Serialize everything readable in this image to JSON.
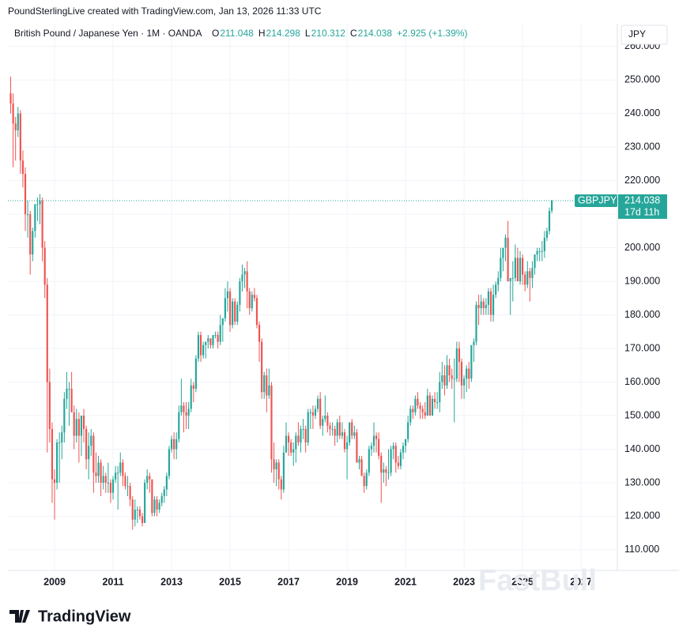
{
  "credit": "PoundSterlingLive created with TradingView.com, Jan 13, 2026 11:33 UTC",
  "chart_data": {
    "type": "candlestick",
    "title": "British Pound / Japanese Yen · 1M · OANDA",
    "ohlc_letters": [
      "O",
      "H",
      "L",
      "C"
    ],
    "change_label": "+2.925 (+1.39%)",
    "currency": "JPY",
    "symbol": "GBPJPY",
    "countdown": "17d 11h",
    "watermark": "FastBull",
    "up_color": "#26a69a",
    "down_color": "#ef5350",
    "start": "2007-07",
    "ohlc": [
      [
        246,
        251,
        240,
        243
      ],
      [
        243,
        246,
        224,
        237
      ],
      [
        237,
        239,
        226,
        235
      ],
      [
        235,
        242,
        233,
        240
      ],
      [
        240,
        241,
        222,
        226
      ],
      [
        226,
        229,
        218,
        222
      ],
      [
        222,
        224,
        205,
        210
      ],
      [
        210,
        214,
        203,
        210
      ],
      [
        210,
        211,
        192,
        198
      ],
      [
        198,
        206,
        196,
        205
      ],
      [
        205,
        213,
        203,
        213
      ],
      [
        213,
        215,
        208,
        213
      ],
      [
        213,
        216,
        207,
        214
      ],
      [
        214,
        215,
        196,
        200
      ],
      [
        200,
        202,
        185,
        189
      ],
      [
        189,
        191,
        139,
        160
      ],
      [
        160,
        164,
        142,
        146
      ],
      [
        146,
        148,
        124,
        131
      ],
      [
        131,
        134,
        119,
        130
      ],
      [
        130,
        143,
        128,
        142
      ],
      [
        142,
        145,
        130,
        142
      ],
      [
        142,
        147,
        137,
        145
      ],
      [
        145,
        157,
        142,
        155
      ],
      [
        155,
        163,
        152,
        158
      ],
      [
        158,
        160,
        147,
        158
      ],
      [
        158,
        163,
        151,
        151
      ],
      [
        151,
        153,
        140,
        144
      ],
      [
        144,
        152,
        142,
        149
      ],
      [
        149,
        151,
        136,
        144
      ],
      [
        144,
        150,
        138,
        150
      ],
      [
        150,
        152,
        142,
        146
      ],
      [
        146,
        147,
        134,
        137
      ],
      [
        137,
        145,
        131,
        141
      ],
      [
        141,
        146,
        138,
        144
      ],
      [
        144,
        145,
        127,
        133
      ],
      [
        133,
        139,
        130,
        132
      ],
      [
        132,
        138,
        130,
        136
      ],
      [
        136,
        137,
        126,
        130
      ],
      [
        130,
        135,
        128,
        132
      ],
      [
        132,
        133,
        127,
        130
      ],
      [
        130,
        136,
        127,
        130
      ],
      [
        130,
        131,
        124,
        127
      ],
      [
        127,
        132,
        125,
        131
      ],
      [
        131,
        135,
        130,
        133
      ],
      [
        133,
        135,
        122,
        133
      ],
      [
        133,
        139,
        132,
        136
      ],
      [
        136,
        137,
        129,
        132
      ],
      [
        132,
        133,
        128,
        129
      ],
      [
        129,
        132,
        126,
        129
      ],
      [
        129,
        130,
        123,
        125
      ],
      [
        125,
        126,
        116,
        119
      ],
      [
        119,
        125,
        117,
        122
      ],
      [
        122,
        123,
        118,
        122
      ],
      [
        122,
        123,
        119,
        120
      ],
      [
        120,
        121,
        117,
        118
      ],
      [
        118,
        131,
        118,
        130
      ],
      [
        130,
        134,
        128,
        132
      ],
      [
        132,
        133,
        127,
        131
      ],
      [
        131,
        131,
        120,
        121
      ],
      [
        121,
        126,
        120,
        125
      ],
      [
        125,
        126,
        120,
        122
      ],
      [
        122,
        125,
        121,
        124
      ],
      [
        124,
        127,
        123,
        126
      ],
      [
        126,
        129,
        124,
        128
      ],
      [
        128,
        133,
        126,
        132
      ],
      [
        132,
        141,
        131,
        140
      ],
      [
        140,
        144,
        139,
        143
      ],
      [
        143,
        145,
        137,
        140
      ],
      [
        140,
        145,
        137,
        143
      ],
      [
        143,
        153,
        142,
        151
      ],
      [
        151,
        161,
        150,
        153
      ],
      [
        153,
        154,
        145,
        151
      ],
      [
        151,
        154,
        146,
        150
      ],
      [
        150,
        154,
        146,
        152
      ],
      [
        152,
        161,
        151,
        159
      ],
      [
        159,
        160,
        154,
        158
      ],
      [
        158,
        168,
        157,
        167
      ],
      [
        167,
        175,
        166,
        174
      ],
      [
        174,
        175,
        166,
        168
      ],
      [
        168,
        172,
        167,
        171
      ],
      [
        171,
        172,
        167,
        172
      ],
      [
        172,
        174,
        170,
        173
      ],
      [
        173,
        173,
        170,
        171
      ],
      [
        171,
        174,
        170,
        174
      ],
      [
        174,
        175,
        173,
        174
      ],
      [
        174,
        175,
        170,
        172
      ],
      [
        172,
        180,
        171,
        177
      ],
      [
        177,
        179,
        172,
        179
      ],
      [
        179,
        188,
        178,
        185
      ],
      [
        185,
        190,
        181,
        187
      ],
      [
        187,
        188,
        175,
        177
      ],
      [
        177,
        185,
        176,
        184
      ],
      [
        184,
        185,
        177,
        178
      ],
      [
        178,
        184,
        177,
        183
      ],
      [
        183,
        191,
        181,
        190
      ],
      [
        190,
        195,
        187,
        192
      ],
      [
        192,
        194,
        188,
        193
      ],
      [
        193,
        196,
        182,
        187
      ],
      [
        187,
        188,
        180,
        182
      ],
      [
        182,
        187,
        181,
        186
      ],
      [
        186,
        188,
        184,
        185
      ],
      [
        185,
        186,
        176,
        177
      ],
      [
        177,
        178,
        166,
        172
      ],
      [
        172,
        173,
        155,
        157
      ],
      [
        157,
        163,
        155,
        162
      ],
      [
        162,
        164,
        151,
        156
      ],
      [
        156,
        164,
        155,
        159
      ],
      [
        159,
        160,
        133,
        137
      ],
      [
        137,
        142,
        130,
        134
      ],
      [
        134,
        137,
        129,
        136
      ],
      [
        136,
        137,
        128,
        131
      ],
      [
        131,
        132,
        125,
        128
      ],
      [
        128,
        141,
        127,
        139
      ],
      [
        139,
        148,
        139,
        144
      ],
      [
        144,
        145,
        138,
        142
      ],
      [
        142,
        143,
        138,
        139
      ],
      [
        139,
        142,
        135,
        140
      ],
      [
        140,
        145,
        136,
        144
      ],
      [
        144,
        148,
        141,
        142
      ],
      [
        142,
        147,
        139,
        146
      ],
      [
        146,
        149,
        143,
        146
      ],
      [
        146,
        147,
        139,
        142
      ],
      [
        142,
        152,
        141,
        151
      ],
      [
        151,
        152,
        146,
        151
      ],
      [
        151,
        153,
        146,
        150
      ],
      [
        150,
        153,
        149,
        152
      ],
      [
        152,
        156,
        151,
        155
      ],
      [
        155,
        157,
        146,
        147
      ],
      [
        147,
        150,
        144,
        149
      ],
      [
        149,
        156,
        148,
        150
      ],
      [
        150,
        151,
        145,
        147
      ],
      [
        147,
        148,
        144,
        146
      ],
      [
        146,
        148,
        144,
        146
      ],
      [
        146,
        147,
        141,
        144
      ],
      [
        144,
        149,
        142,
        148
      ],
      [
        148,
        150,
        143,
        144
      ],
      [
        144,
        148,
        143,
        145
      ],
      [
        145,
        146,
        139,
        140
      ],
      [
        140,
        144,
        131,
        142
      ],
      [
        142,
        148,
        141,
        148
      ],
      [
        148,
        149,
        143,
        144
      ],
      [
        144,
        147,
        143,
        145
      ],
      [
        145,
        146,
        136,
        136
      ],
      [
        136,
        138,
        134,
        137
      ],
      [
        137,
        138,
        132,
        132
      ],
      [
        132,
        133,
        127,
        129
      ],
      [
        129,
        134,
        128,
        133
      ],
      [
        133,
        141,
        132,
        140
      ],
      [
        140,
        142,
        138,
        141
      ],
      [
        141,
        148,
        139,
        144
      ],
      [
        144,
        145,
        139,
        143
      ],
      [
        143,
        145,
        137,
        138
      ],
      [
        138,
        139,
        124,
        133
      ],
      [
        133,
        136,
        130,
        134
      ],
      [
        134,
        135,
        129,
        133
      ],
      [
        133,
        140,
        131,
        133
      ],
      [
        133,
        141,
        132,
        140
      ],
      [
        140,
        142,
        137,
        141
      ],
      [
        141,
        142,
        133,
        136
      ],
      [
        136,
        138,
        134,
        135
      ],
      [
        135,
        140,
        134,
        139
      ],
      [
        139,
        142,
        137,
        141
      ],
      [
        141,
        143,
        139,
        143
      ],
      [
        143,
        150,
        142,
        148
      ],
      [
        148,
        153,
        147,
        152
      ],
      [
        152,
        153,
        149,
        151
      ],
      [
        151,
        156,
        150,
        155
      ],
      [
        155,
        157,
        152,
        153
      ],
      [
        153,
        154,
        149,
        152
      ],
      [
        152,
        153,
        149,
        151
      ],
      [
        151,
        154,
        149,
        150
      ],
      [
        150,
        158,
        150,
        156
      ],
      [
        156,
        157,
        150,
        150
      ],
      [
        150,
        156,
        150,
        155
      ],
      [
        155,
        157,
        152,
        154
      ],
      [
        154,
        157,
        152,
        154
      ],
      [
        154,
        163,
        151,
        160
      ],
      [
        160,
        166,
        158,
        162
      ],
      [
        162,
        165,
        156,
        159
      ],
      [
        159,
        168,
        158,
        165
      ],
      [
        165,
        167,
        160,
        162
      ],
      [
        162,
        164,
        158,
        161
      ],
      [
        161,
        167,
        148,
        161
      ],
      [
        161,
        172,
        160,
        170
      ],
      [
        170,
        172,
        160,
        166
      ],
      [
        166,
        167,
        155,
        159
      ],
      [
        159,
        162,
        155,
        161
      ],
      [
        161,
        165,
        157,
        164
      ],
      [
        164,
        166,
        158,
        161
      ],
      [
        161,
        171,
        160,
        171
      ],
      [
        171,
        173,
        166,
        172
      ],
      [
        172,
        184,
        171,
        183
      ],
      [
        183,
        186,
        177,
        182
      ],
      [
        182,
        186,
        180,
        184
      ],
      [
        184,
        185,
        180,
        182
      ],
      [
        182,
        185,
        180,
        183
      ],
      [
        183,
        188,
        180,
        187
      ],
      [
        187,
        188,
        178,
        180
      ],
      [
        180,
        189,
        178,
        186
      ],
      [
        186,
        190,
        185,
        189
      ],
      [
        189,
        193,
        187,
        191
      ],
      [
        191,
        200,
        190,
        197
      ],
      [
        197,
        200,
        193,
        200
      ],
      [
        200,
        204,
        196,
        203
      ],
      [
        203,
        208,
        190,
        190
      ],
      [
        190,
        191,
        180,
        191
      ],
      [
        191,
        196,
        184,
        191
      ],
      [
        191,
        201,
        190,
        197
      ],
      [
        197,
        200,
        190,
        190
      ],
      [
        190,
        199,
        189,
        197
      ],
      [
        197,
        198,
        189,
        192
      ],
      [
        192,
        193,
        187,
        189
      ],
      [
        189,
        196,
        188,
        193
      ],
      [
        193,
        194,
        184,
        191
      ],
      [
        191,
        196,
        188,
        194
      ],
      [
        194,
        198,
        192,
        198
      ],
      [
        198,
        200,
        196,
        199
      ],
      [
        199,
        200,
        196,
        199
      ],
      [
        199,
        202,
        196,
        199
      ],
      [
        199,
        205,
        197,
        203
      ],
      [
        203,
        206,
        202,
        205
      ],
      [
        205,
        212,
        204,
        211
      ],
      [
        211.048,
        214.298,
        210.312,
        214.038
      ]
    ],
    "xlim": [
      2007.405,
      2028.24
    ],
    "xticks": [
      2009,
      2011,
      2013,
      2015,
      2017,
      2019,
      2021,
      2023,
      2025,
      2027
    ],
    "ylim": [
      103.86,
      266.76
    ],
    "yticks": [
      {
        "value": 110,
        "label": "110.000"
      },
      {
        "value": 120,
        "label": "120.000"
      },
      {
        "value": 130,
        "label": "130.000"
      },
      {
        "value": 140,
        "label": "140.000"
      },
      {
        "value": 150,
        "label": "150.000"
      },
      {
        "value": 160,
        "label": "160.000"
      },
      {
        "value": 170,
        "label": "170.000"
      },
      {
        "value": 180,
        "label": "180.000"
      },
      {
        "value": 190,
        "label": "190.000"
      },
      {
        "value": 200,
        "label": "200.000"
      },
      {
        "value": 210,
        "label": "210.000"
      },
      {
        "value": 220,
        "label": "220.000"
      },
      {
        "value": 230,
        "label": "230.000"
      },
      {
        "value": 240,
        "label": "240.000"
      },
      {
        "value": 250,
        "label": "250.000"
      },
      {
        "value": 260,
        "label": "260.000"
      }
    ],
    "grid": true
  },
  "brand": "TradingView"
}
